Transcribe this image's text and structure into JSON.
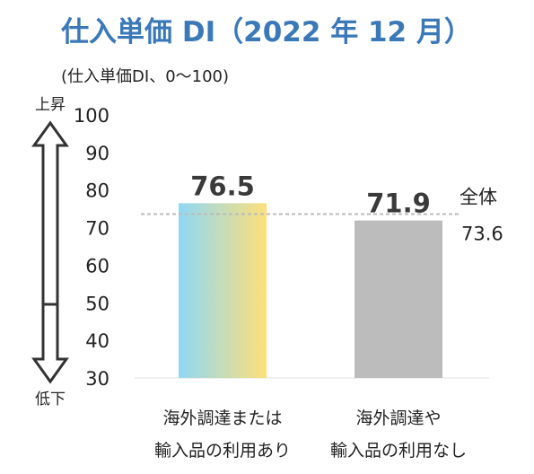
{
  "chart_data": {
    "type": "bar",
    "title": "仕入単価 DI（2022 年 12 月）",
    "ylabel": "(仕入単価DI、0～100)",
    "ylim": [
      30,
      100
    ],
    "yticks": [
      30,
      40,
      50,
      60,
      70,
      80,
      90,
      100
    ],
    "categories": [
      [
        "海外調達または",
        "輸入品の利用あり"
      ],
      [
        "海外調達や",
        "輸入品の利用なし"
      ]
    ],
    "values": [
      76.5,
      71.9
    ],
    "data_labels": [
      "76.5",
      "71.9"
    ],
    "reference_line": {
      "label": "全体",
      "value": 73.6,
      "value_label": "73.6"
    },
    "arrow_labels": {
      "top": "上昇",
      "bottom": "低下"
    },
    "colors": {
      "bar1_gradient": [
        "#8fd8f5",
        "#fde07a"
      ],
      "bar2": "#bcbcbc",
      "reference_line": "#bbbbbb",
      "title": "#3a78b8"
    },
    "grid": false,
    "legend": "none"
  }
}
